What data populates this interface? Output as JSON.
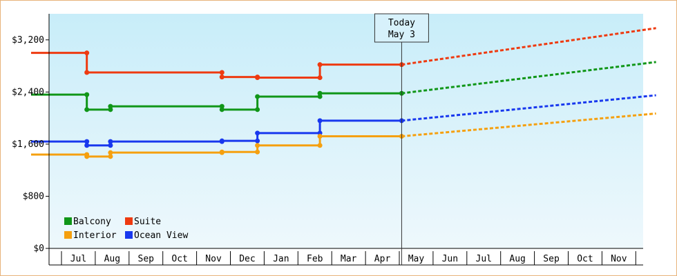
{
  "chart_data": {
    "type": "line",
    "title": "",
    "xlabel": "",
    "ylabel": "",
    "ylim": [
      0,
      3600
    ],
    "y_ticks": [
      {
        "value": 0,
        "label": "$0"
      },
      {
        "value": 800,
        "label": "$800"
      },
      {
        "value": 1600,
        "label": "$1,600"
      },
      {
        "value": 2400,
        "label": "$2,400"
      },
      {
        "value": 3200,
        "label": "$3,200"
      }
    ],
    "months": [
      "Jul",
      "Aug",
      "Sep",
      "Oct",
      "Nov",
      "Dec",
      "Jan",
      "Feb",
      "Mar",
      "Apr",
      "May",
      "Jun",
      "Jul",
      "Aug",
      "Sep",
      "Oct",
      "Nov"
    ],
    "today_marker": {
      "line1": "Today",
      "line2": "May 3",
      "x": 10.07
    },
    "grid": false,
    "background_gradient": [
      "#c8edf9",
      "#eef8fc"
    ],
    "legend": {
      "placement": "bottom-left",
      "items": [
        {
          "label": "Balcony",
          "color": "#109618"
        },
        {
          "label": "Suite",
          "color": "#ee3a10"
        },
        {
          "label": "Interior",
          "color": "#f5a00f"
        },
        {
          "label": "Ocean View",
          "color": "#1838ee"
        }
      ]
    },
    "series": [
      {
        "name": "Suite",
        "color": "#ee3a10",
        "values": [
          [
            -0.9,
            3000
          ],
          [
            0.75,
            3000
          ],
          [
            0.75,
            2700
          ],
          [
            4.75,
            2700
          ],
          [
            4.75,
            2630
          ],
          [
            5.8,
            2630
          ],
          [
            5.8,
            2620
          ],
          [
            7.65,
            2620
          ],
          [
            7.65,
            2820
          ],
          [
            10.07,
            2820
          ]
        ],
        "forecast": [
          [
            10.07,
            2820
          ],
          [
            17.6,
            3380
          ]
        ]
      },
      {
        "name": "Balcony",
        "color": "#109618",
        "values": [
          [
            -0.9,
            2360
          ],
          [
            0.75,
            2360
          ],
          [
            0.75,
            2130
          ],
          [
            1.45,
            2130
          ],
          [
            1.45,
            2180
          ],
          [
            4.75,
            2180
          ],
          [
            4.75,
            2130
          ],
          [
            5.8,
            2130
          ],
          [
            5.8,
            2330
          ],
          [
            7.65,
            2330
          ],
          [
            7.65,
            2380
          ],
          [
            10.07,
            2380
          ]
        ],
        "forecast": [
          [
            10.07,
            2380
          ],
          [
            17.6,
            2860
          ]
        ]
      },
      {
        "name": "Ocean View",
        "color": "#1838ee",
        "values": [
          [
            -0.9,
            1640
          ],
          [
            0.75,
            1640
          ],
          [
            0.75,
            1580
          ],
          [
            1.45,
            1580
          ],
          [
            1.45,
            1640
          ],
          [
            4.75,
            1640
          ],
          [
            4.75,
            1650
          ],
          [
            5.8,
            1650
          ],
          [
            5.8,
            1770
          ],
          [
            7.65,
            1770
          ],
          [
            7.65,
            1960
          ],
          [
            10.07,
            1960
          ]
        ],
        "forecast": [
          [
            10.07,
            1960
          ],
          [
            17.6,
            2350
          ]
        ]
      },
      {
        "name": "Interior",
        "color": "#f5a00f",
        "values": [
          [
            -0.9,
            1440
          ],
          [
            0.75,
            1440
          ],
          [
            0.75,
            1410
          ],
          [
            1.45,
            1410
          ],
          [
            1.45,
            1470
          ],
          [
            4.75,
            1470
          ],
          [
            4.75,
            1480
          ],
          [
            5.8,
            1480
          ],
          [
            5.8,
            1580
          ],
          [
            7.65,
            1580
          ],
          [
            7.65,
            1720
          ],
          [
            10.07,
            1720
          ]
        ],
        "forecast": [
          [
            10.07,
            1720
          ],
          [
            17.6,
            2070
          ]
        ]
      }
    ]
  }
}
